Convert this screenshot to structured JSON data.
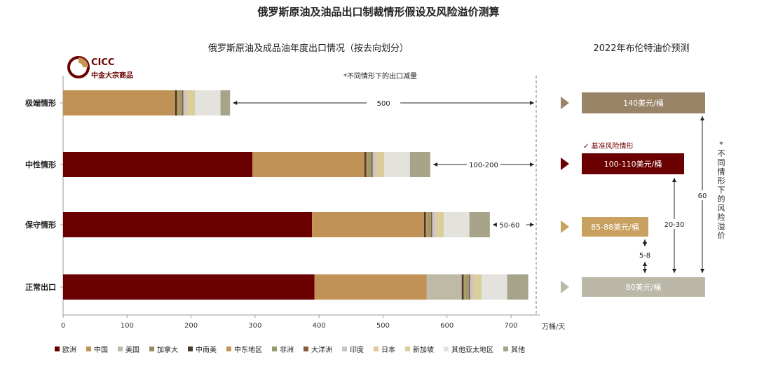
{
  "title": "俄罗斯原油及油品出口制裁情形假设及风险溢价测算",
  "subtitle_left": "俄罗斯原油及成品油年度出口情况（按去向划分）",
  "subtitle_right": "2022年布伦特油价预测",
  "logo": {
    "en": "CICC",
    "cn": "中金大宗商品"
  },
  "note": "*不同情形下的出口减量",
  "colors": {
    "欧洲": "#6b0000",
    "中国": "#c19255",
    "美国": "#bfbaa5",
    "加拿大": "#9a8a6a",
    "中南美": "#4a3a2a",
    "中东地区": "#c8945a",
    "非洲": "#9b9a6a",
    "大洋洲": "#8a5a3a",
    "印度": "#c8c4cc",
    "日本": "#e0c89a",
    "新加坡": "#d8d09a",
    "其他亚太地区": "#e4e2dc",
    "其他": "#a8a48a"
  },
  "chart_data": {
    "type": "bar",
    "orientation": "horizontal",
    "stacked": true,
    "title": "俄罗斯原油及成品油年度出口情况（按去向划分）",
    "xlabel": "万桶/天",
    "xlim": [
      0,
      750
    ],
    "xticks": [
      0,
      100,
      200,
      300,
      400,
      500,
      600,
      700
    ],
    "categories": [
      "极端情形",
      "中性情形",
      "保守情形",
      "正常出口"
    ],
    "series": [
      {
        "name": "欧洲",
        "values": [
          0,
          296,
          389,
          393
        ]
      },
      {
        "name": "中国",
        "values": [
          175,
          175,
          175,
          175
        ]
      },
      {
        "name": "美国",
        "values": [
          0,
          0,
          0,
          55
        ]
      },
      {
        "name": "加拿大",
        "values": [
          0,
          0,
          0,
          0
        ]
      },
      {
        "name": "中南美",
        "values": [
          3,
          3,
          3,
          3
        ]
      },
      {
        "name": "中东地区",
        "values": [
          2,
          2,
          2,
          2
        ]
      },
      {
        "name": "非洲",
        "values": [
          6,
          6,
          6,
          6
        ]
      },
      {
        "name": "大洋洲",
        "values": [
          2,
          2,
          2,
          2
        ]
      },
      {
        "name": "印度",
        "values": [
          5,
          5,
          5,
          5
        ]
      },
      {
        "name": "日本",
        "values": [
          5,
          5,
          5,
          5
        ]
      },
      {
        "name": "新加坡",
        "values": [
          8,
          8,
          8,
          8
        ]
      },
      {
        "name": "其他亚太地区",
        "values": [
          40,
          40,
          40,
          40
        ]
      },
      {
        "name": "其他",
        "values": [
          15,
          32,
          32,
          33
        ]
      }
    ],
    "reduction_labels": [
      "500",
      "100-200",
      "50-60",
      ""
    ]
  },
  "forecast": {
    "boxes": [
      {
        "label": "140美元/桶",
        "color": "#9a8468"
      },
      {
        "label": "100-110美元/桶",
        "color": "#6b0000"
      },
      {
        "label": "85-88美元/桶",
        "color": "#c8a060"
      },
      {
        "label": "80美元/桶",
        "color": "#bcb8a8"
      }
    ],
    "base_case_label": "✓ 基准风险情形",
    "premium_labels": [
      "5-8",
      "20-30",
      "60"
    ],
    "vertical_note": "*不同情形下的风险溢价"
  },
  "legend": [
    "欧洲",
    "中国",
    "美国",
    "加拿大",
    "中南美",
    "中东地区",
    "非洲",
    "大洋洲",
    "印度",
    "日本",
    "新加坡",
    "其他亚太地区",
    "其他"
  ]
}
